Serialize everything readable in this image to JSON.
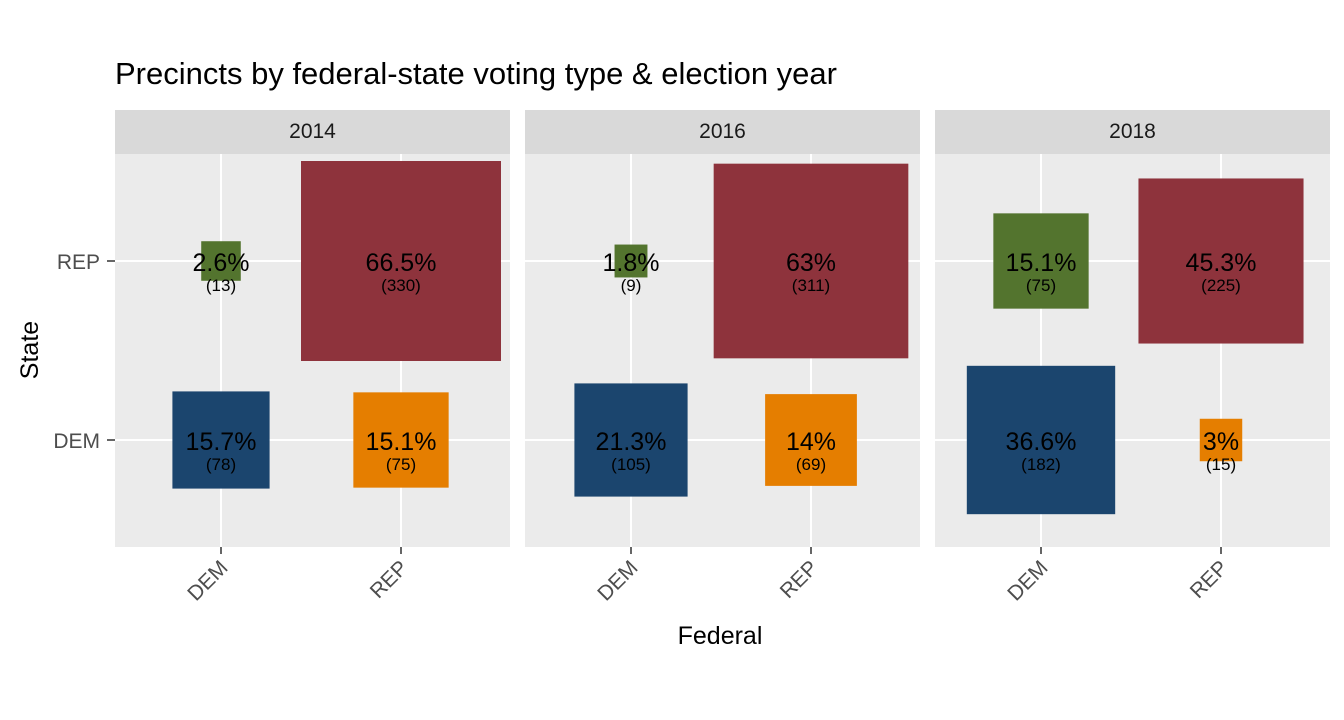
{
  "chart_data": {
    "type": "heatmap",
    "title": "Precincts by federal-state voting type & election year",
    "xlabel": "Federal",
    "ylabel": "State",
    "x_categories": [
      "DEM",
      "REP"
    ],
    "y_categories": [
      "DEM",
      "REP"
    ],
    "panels": [
      {
        "year": "2014",
        "cells": [
          {
            "federal": "DEM",
            "state": "REP",
            "pct": 2.6,
            "count": 13,
            "pct_label": "2.6%",
            "count_label": "(13)",
            "color": "#53742E"
          },
          {
            "federal": "REP",
            "state": "REP",
            "pct": 66.5,
            "count": 330,
            "pct_label": "66.5%",
            "count_label": "(330)",
            "color": "#8E333C"
          },
          {
            "federal": "DEM",
            "state": "DEM",
            "pct": 15.7,
            "count": 78,
            "pct_label": "15.7%",
            "count_label": "(78)",
            "color": "#1B456E"
          },
          {
            "federal": "REP",
            "state": "DEM",
            "pct": 15.1,
            "count": 75,
            "pct_label": "15.1%",
            "count_label": "(75)",
            "color": "#E57E00"
          }
        ]
      },
      {
        "year": "2016",
        "cells": [
          {
            "federal": "DEM",
            "state": "REP",
            "pct": 1.8,
            "count": 9,
            "pct_label": "1.8%",
            "count_label": "(9)",
            "color": "#53742E"
          },
          {
            "federal": "REP",
            "state": "REP",
            "pct": 63,
            "count": 311,
            "pct_label": "63%",
            "count_label": "(311)",
            "color": "#8E333C"
          },
          {
            "federal": "DEM",
            "state": "DEM",
            "pct": 21.3,
            "count": 105,
            "pct_label": "21.3%",
            "count_label": "(105)",
            "color": "#1B456E"
          },
          {
            "federal": "REP",
            "state": "DEM",
            "pct": 14,
            "count": 69,
            "pct_label": "14%",
            "count_label": "(69)",
            "color": "#E57E00"
          }
        ]
      },
      {
        "year": "2018",
        "cells": [
          {
            "federal": "DEM",
            "state": "REP",
            "pct": 15.1,
            "count": 75,
            "pct_label": "15.1%",
            "count_label": "(75)",
            "color": "#53742E"
          },
          {
            "federal": "REP",
            "state": "REP",
            "pct": 45.3,
            "count": 225,
            "pct_label": "45.3%",
            "count_label": "(225)",
            "color": "#8E333C"
          },
          {
            "federal": "DEM",
            "state": "DEM",
            "pct": 36.6,
            "count": 182,
            "pct_label": "36.6%",
            "count_label": "(182)",
            "color": "#1B456E"
          },
          {
            "federal": "REP",
            "state": "DEM",
            "pct": 3,
            "count": 15,
            "pct_label": "3%",
            "count_label": "(15)",
            "color": "#E57E00"
          }
        ]
      }
    ],
    "size_encoding": "pct",
    "grid": true,
    "legend": "none"
  },
  "colors": {
    "panel_background": "#EBEBEB",
    "strip_background": "#D9D9D9",
    "gridline": "#FFFFFF"
  }
}
